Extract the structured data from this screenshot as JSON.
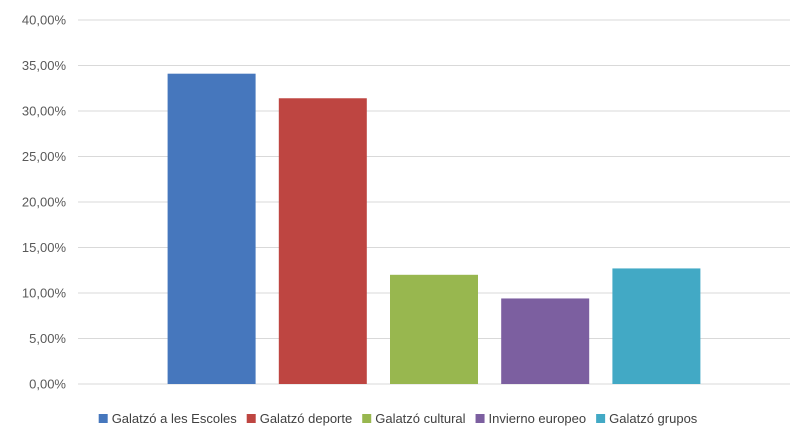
{
  "chart_data": {
    "type": "bar",
    "title": "",
    "xlabel": "",
    "ylabel": "",
    "ylim": [
      0,
      40
    ],
    "yticks": [
      0,
      5,
      10,
      15,
      20,
      25,
      30,
      35,
      40
    ],
    "ytick_labels": [
      "0,00%",
      "5,00%",
      "10,00%",
      "15,00%",
      "20,00%",
      "25,00%",
      "30,00%",
      "35,00%",
      "40,00%"
    ],
    "grid": true,
    "legend_position": "bottom",
    "series": [
      {
        "name": "Galatzó a les Escoles",
        "value": 34.1,
        "color": "#4677bd"
      },
      {
        "name": "Galatzó deporte",
        "value": 31.4,
        "color": "#be4541"
      },
      {
        "name": "Galatzó cultural",
        "value": 12.0,
        "color": "#98b74f"
      },
      {
        "name": "Invierno europeo",
        "value": 9.4,
        "color": "#7c5fa0"
      },
      {
        "name": "Galatzó grupos",
        "value": 12.7,
        "color": "#42a9c5"
      }
    ]
  }
}
